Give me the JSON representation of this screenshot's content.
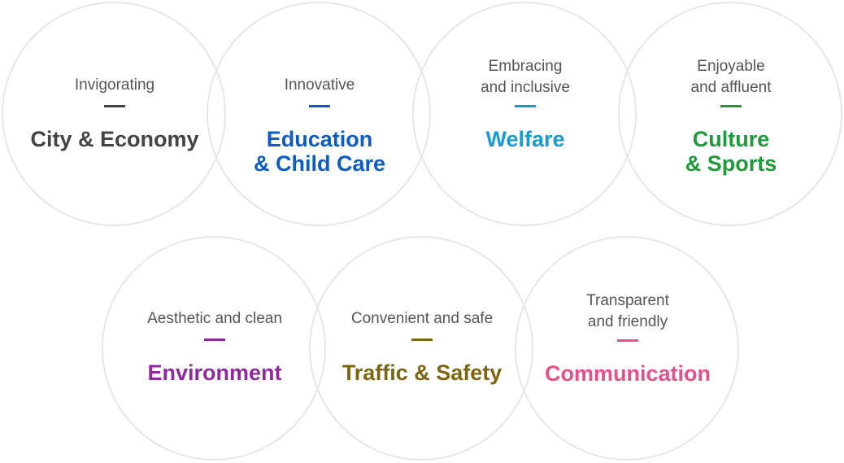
{
  "items": [
    {
      "sub_lines": [
        "Invigorating"
      ],
      "main_lines": [
        "City & Economy"
      ],
      "color": "#444444"
    },
    {
      "sub_lines": [
        "Innovative"
      ],
      "main_lines": [
        "Education",
        "& Child Care"
      ],
      "color": "#0b5cc4"
    },
    {
      "sub_lines": [
        "Embracing",
        "and inclusive"
      ],
      "main_lines": [
        "Welfare"
      ],
      "color": "#1a9ad0"
    },
    {
      "sub_lines": [
        "Enjoyable",
        "and affluent"
      ],
      "main_lines": [
        "Culture",
        "& Sports"
      ],
      "color": "#1e9a3a"
    },
    {
      "sub_lines": [
        "Aesthetic and clean"
      ],
      "main_lines": [
        "Environment"
      ],
      "color": "#8e2a9e"
    },
    {
      "sub_lines": [
        "Convenient and safe"
      ],
      "main_lines": [
        "Traffic & Safety"
      ],
      "color": "#7d6410"
    },
    {
      "sub_lines": [
        "Transparent",
        "and friendly"
      ],
      "main_lines": [
        "Communication"
      ],
      "color": "#e5508a"
    }
  ]
}
